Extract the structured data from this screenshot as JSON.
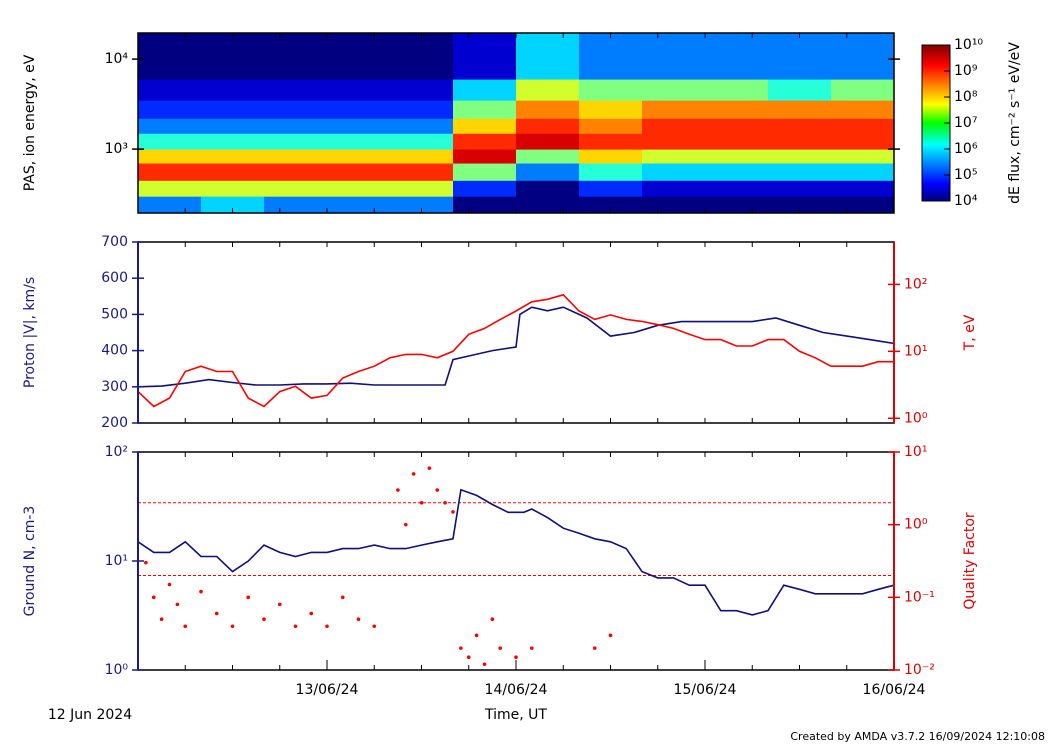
{
  "chart_data": [
    {
      "type": "heatmap",
      "ylabel": "PAS, ion energy, eV",
      "ylog": true,
      "xlim": [
        0,
        96
      ],
      "xminor": [
        0,
        6,
        12,
        18,
        24,
        30,
        36,
        42,
        48,
        54,
        60,
        66,
        72,
        78,
        84,
        90,
        96
      ],
      "ylim": [
        195,
        19500
      ],
      "yticks": [
        {
          "value": 1000,
          "label": "10³"
        },
        {
          "value": 10000,
          "label": "10⁴"
        }
      ],
      "x_edges": [
        0,
        8,
        16,
        24,
        32,
        40,
        48,
        56,
        64,
        72,
        80,
        88,
        96
      ],
      "y_edges": [
        195,
        300,
        450,
        700,
        1000,
        1500,
        2200,
        3500,
        6000,
        19500
      ],
      "z": [
        [
          300000,
          30000000,
          1000000000,
          100000000,
          3000000,
          300000,
          100000,
          30000,
          10000
        ],
        [
          1000000,
          30000000,
          1000000000,
          100000000,
          3000000,
          300000,
          100000,
          30000,
          10000
        ],
        [
          300000,
          30000000,
          1000000000,
          100000000,
          3000000,
          300000,
          100000,
          30000,
          10000
        ],
        [
          300000,
          30000000,
          1000000000,
          100000000,
          3000000,
          300000,
          100000,
          30000,
          10000
        ],
        [
          300000,
          30000000,
          1000000000,
          100000000,
          3000000,
          300000,
          100000,
          30000,
          10000
        ],
        [
          10000,
          100000,
          10000000,
          3000000000,
          1000000000,
          100000000,
          10000000,
          1000000,
          30000
        ],
        [
          10000,
          10000,
          300000,
          10000000,
          3000000000,
          1000000000,
          300000000,
          30000000,
          1000000
        ],
        [
          10000,
          100000,
          3000000,
          100000000,
          1000000000,
          300000000,
          100000000,
          10000000,
          300000
        ],
        [
          10000,
          30000,
          1000000,
          30000000,
          1000000000,
          1000000000,
          300000000,
          10000000,
          300000
        ],
        [
          10000,
          30000,
          1000000,
          30000000,
          1000000000,
          1000000000,
          300000000,
          10000000,
          300000
        ],
        [
          10000,
          30000,
          1000000,
          30000000,
          1000000000,
          1000000000,
          300000000,
          3000000,
          300000
        ],
        [
          10000,
          30000,
          1000000,
          30000000,
          1000000000,
          1000000000,
          300000000,
          10000000,
          300000
        ]
      ],
      "zlim": [
        10000,
        10000000000
      ],
      "zlog": true,
      "zticks": [
        {
          "value": 10000,
          "label": "10⁴"
        },
        {
          "value": 100000,
          "label": "10⁵"
        },
        {
          "value": 1000000,
          "label": "10⁶"
        },
        {
          "value": 10000000,
          "label": "10⁷"
        },
        {
          "value": 100000000,
          "label": "10⁸"
        },
        {
          "value": 1000000000,
          "label": "10⁹"
        },
        {
          "value": 10000000000,
          "label": "10¹⁰"
        }
      ],
      "zlabel": "dE flux, cm⁻² s⁻¹ eV/eV",
      "ycolor": "#000000"
    },
    {
      "type": "line",
      "ylabel": "Proton |V|, km/s",
      "y2label": "T, eV",
      "ycolor": "#1a1a80",
      "y2color": "#e00000",
      "xlim": [
        0,
        96
      ],
      "xminor": [
        0,
        6,
        12,
        18,
        24,
        30,
        36,
        42,
        48,
        54,
        60,
        66,
        72,
        78,
        84,
        90,
        96
      ],
      "ylim": [
        200,
        700
      ],
      "yticks": [
        200,
        300,
        400,
        500,
        600,
        700
      ],
      "y2log": true,
      "y2lim": [
        0.85,
        430
      ],
      "y2ticks": [
        {
          "value": 1,
          "label": "10⁰"
        },
        {
          "value": 10,
          "label": "10¹"
        },
        {
          "value": 100,
          "label": "10²"
        }
      ],
      "series": [
        {
          "color": "#10107a",
          "x": [
            0,
            3,
            6,
            9,
            12,
            15,
            18,
            21,
            24,
            27,
            30,
            33,
            36,
            39,
            40,
            42,
            45,
            48,
            48.5,
            50,
            52,
            54,
            56,
            57,
            60,
            63,
            66,
            69,
            72,
            75,
            78,
            81,
            84,
            87,
            90,
            93,
            96
          ],
          "values": [
            300,
            302,
            310,
            320,
            312,
            305,
            305,
            308,
            308,
            310,
            305,
            305,
            305,
            305,
            375,
            385,
            400,
            410,
            500,
            520,
            510,
            520,
            500,
            490,
            440,
            450,
            470,
            480,
            480,
            480,
            480,
            490,
            470,
            450,
            440,
            430,
            420
          ]
        },
        {
          "color": "#ff0000",
          "axis": "y2",
          "x": [
            0,
            2,
            4,
            6,
            8,
            10,
            12,
            14,
            16,
            18,
            20,
            22,
            24,
            26,
            28,
            30,
            32,
            34,
            36,
            38,
            40,
            42,
            44,
            46,
            48,
            50,
            52,
            54,
            56,
            58,
            60,
            62,
            64,
            66,
            68,
            70,
            72,
            74,
            76,
            78,
            80,
            82,
            84,
            86,
            88,
            90,
            92,
            94,
            96
          ],
          "values": [
            2.5,
            1.5,
            2,
            5,
            6,
            5,
            5,
            2,
            1.5,
            2.5,
            3,
            2,
            2.2,
            4,
            5,
            6,
            8,
            9,
            9,
            8,
            10,
            18,
            22,
            30,
            40,
            55,
            60,
            70,
            40,
            30,
            35,
            30,
            28,
            25,
            22,
            18,
            15,
            15,
            12,
            12,
            15,
            15,
            10,
            8,
            6,
            6,
            6,
            7,
            7
          ]
        }
      ]
    },
    {
      "type": "line",
      "ylabel": "Ground N, cm-3",
      "y2label": "Quality Factor",
      "ycolor": "#1a1a80",
      "y2color": "#e00000",
      "xlim": [
        0,
        96
      ],
      "xminor": [
        0,
        6,
        12,
        18,
        24,
        30,
        36,
        42,
        48,
        54,
        60,
        66,
        72,
        78,
        84,
        90,
        96
      ],
      "xticks": [
        {
          "value": 24,
          "label": "13/06/24"
        },
        {
          "value": 48,
          "label": "14/06/24"
        },
        {
          "value": 72,
          "label": "15/06/24"
        },
        {
          "value": 96,
          "label": "16/06/24"
        }
      ],
      "xstart_label": "12 Jun 2024",
      "xlabel": "Time, UT",
      "ylog": true,
      "ylim": [
        1,
        100
      ],
      "yticks": [
        {
          "value": 1,
          "label": "10⁰"
        },
        {
          "value": 10,
          "label": "10¹"
        },
        {
          "value": 100,
          "label": "10²"
        }
      ],
      "y2log": true,
      "y2lim": [
        0.01,
        10
      ],
      "y2ticks": [
        {
          "value": 0.01,
          "label": "10⁻²"
        },
        {
          "value": 0.1,
          "label": "10⁻¹"
        },
        {
          "value": 1,
          "label": "10⁰"
        },
        {
          "value": 10,
          "label": "10¹"
        }
      ],
      "hlines": [
        2,
        0.2
      ],
      "hline_color": "#ff0000",
      "series": [
        {
          "color": "#10107a",
          "x": [
            0,
            2,
            4,
            6,
            8,
            10,
            12,
            14,
            16,
            18,
            20,
            22,
            24,
            26,
            28,
            30,
            32,
            34,
            36,
            38,
            40,
            41,
            43,
            45,
            47,
            49,
            50,
            52,
            54,
            56,
            58,
            60,
            62,
            64,
            66,
            68,
            70,
            72,
            74,
            76,
            78,
            80,
            82,
            84,
            86,
            88,
            90,
            92,
            94,
            96
          ],
          "values": [
            15,
            12,
            12,
            15,
            11,
            11,
            8,
            10,
            14,
            12,
            11,
            12,
            12,
            13,
            13,
            14,
            13,
            13,
            14,
            15,
            16,
            45,
            40,
            33,
            28,
            28,
            30,
            25,
            20,
            18,
            16,
            15,
            13,
            8,
            7,
            7,
            6,
            6,
            3.5,
            3.5,
            3.2,
            3.5,
            6,
            5.5,
            5,
            5,
            5,
            5,
            5.5,
            6
          ]
        },
        {
          "color": "#ff0000",
          "axis": "y2",
          "style": "scatter",
          "x": [
            1,
            2,
            3,
            4,
            5,
            6,
            8,
            10,
            12,
            14,
            16,
            18,
            20,
            22,
            24,
            26,
            28,
            30,
            33,
            34,
            35,
            36,
            37,
            38,
            39,
            40,
            41,
            42,
            43,
            44,
            45,
            46,
            48,
            50,
            58,
            60
          ],
          "values": [
            0.3,
            0.1,
            0.05,
            0.15,
            0.08,
            0.04,
            0.12,
            0.06,
            0.04,
            0.1,
            0.05,
            0.08,
            0.04,
            0.06,
            0.04,
            0.1,
            0.05,
            0.04,
            3,
            1,
            5,
            2,
            6,
            3,
            2,
            1.5,
            0.02,
            0.015,
            0.03,
            0.012,
            0.05,
            0.02,
            0.015,
            0.02,
            0.02,
            0.03
          ]
        }
      ]
    }
  ],
  "footer": "Created by AMDA v3.7.2 16/09/2024 12:10:08"
}
